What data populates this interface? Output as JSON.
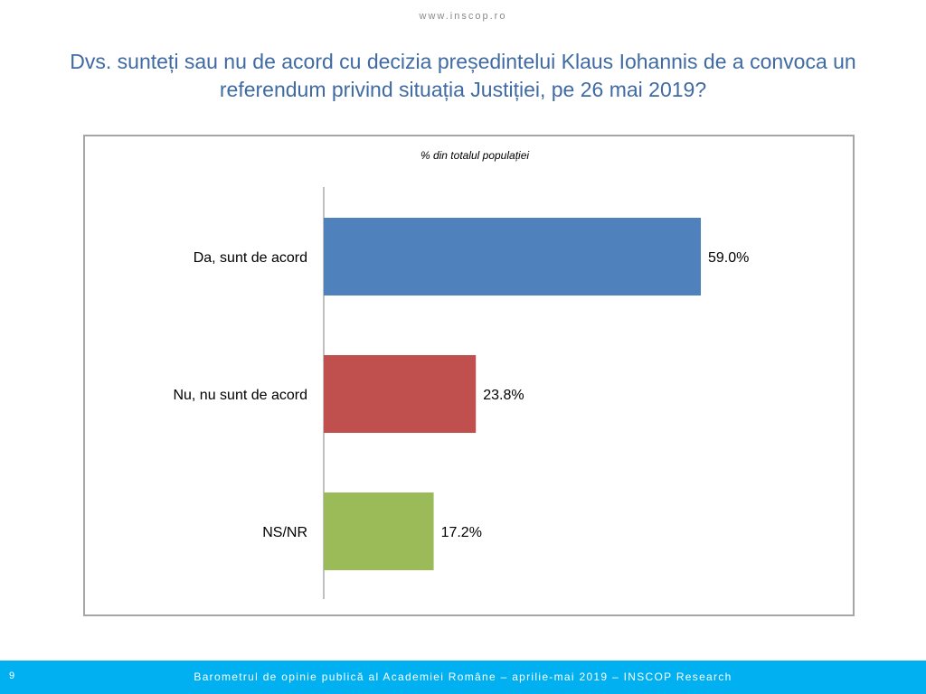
{
  "header": {
    "site_url": "www.inscop.ro",
    "title": "Dvs. sunteți sau nu de acord cu decizia președintelui Klaus Iohannis de a convoca un referendum privind situația Justiției, pe 26 mai 2019?"
  },
  "chart_data": {
    "type": "bar",
    "orientation": "horizontal",
    "subtitle": "% din totalul populației",
    "categories": [
      "Da, sunt de acord",
      "Nu, nu sunt de acord",
      "NS/NR"
    ],
    "values": [
      59.0,
      23.8,
      17.2
    ],
    "value_labels": [
      "59.0%",
      "23.8%",
      "17.2%"
    ],
    "colors": [
      "#4f81bd",
      "#c0504d",
      "#9bbb59"
    ],
    "xlim": [
      0,
      100
    ],
    "grid": false,
    "legend": "none"
  },
  "footer": {
    "page_number": "9",
    "text": "Barometrul de opinie publică al Academiei Române – aprilie-mai 2019 – INSCOP Research"
  },
  "colors": {
    "title": "#3f6aa3",
    "footer_bar": "#00b0f0",
    "frame_border": "#a6a6a6"
  }
}
